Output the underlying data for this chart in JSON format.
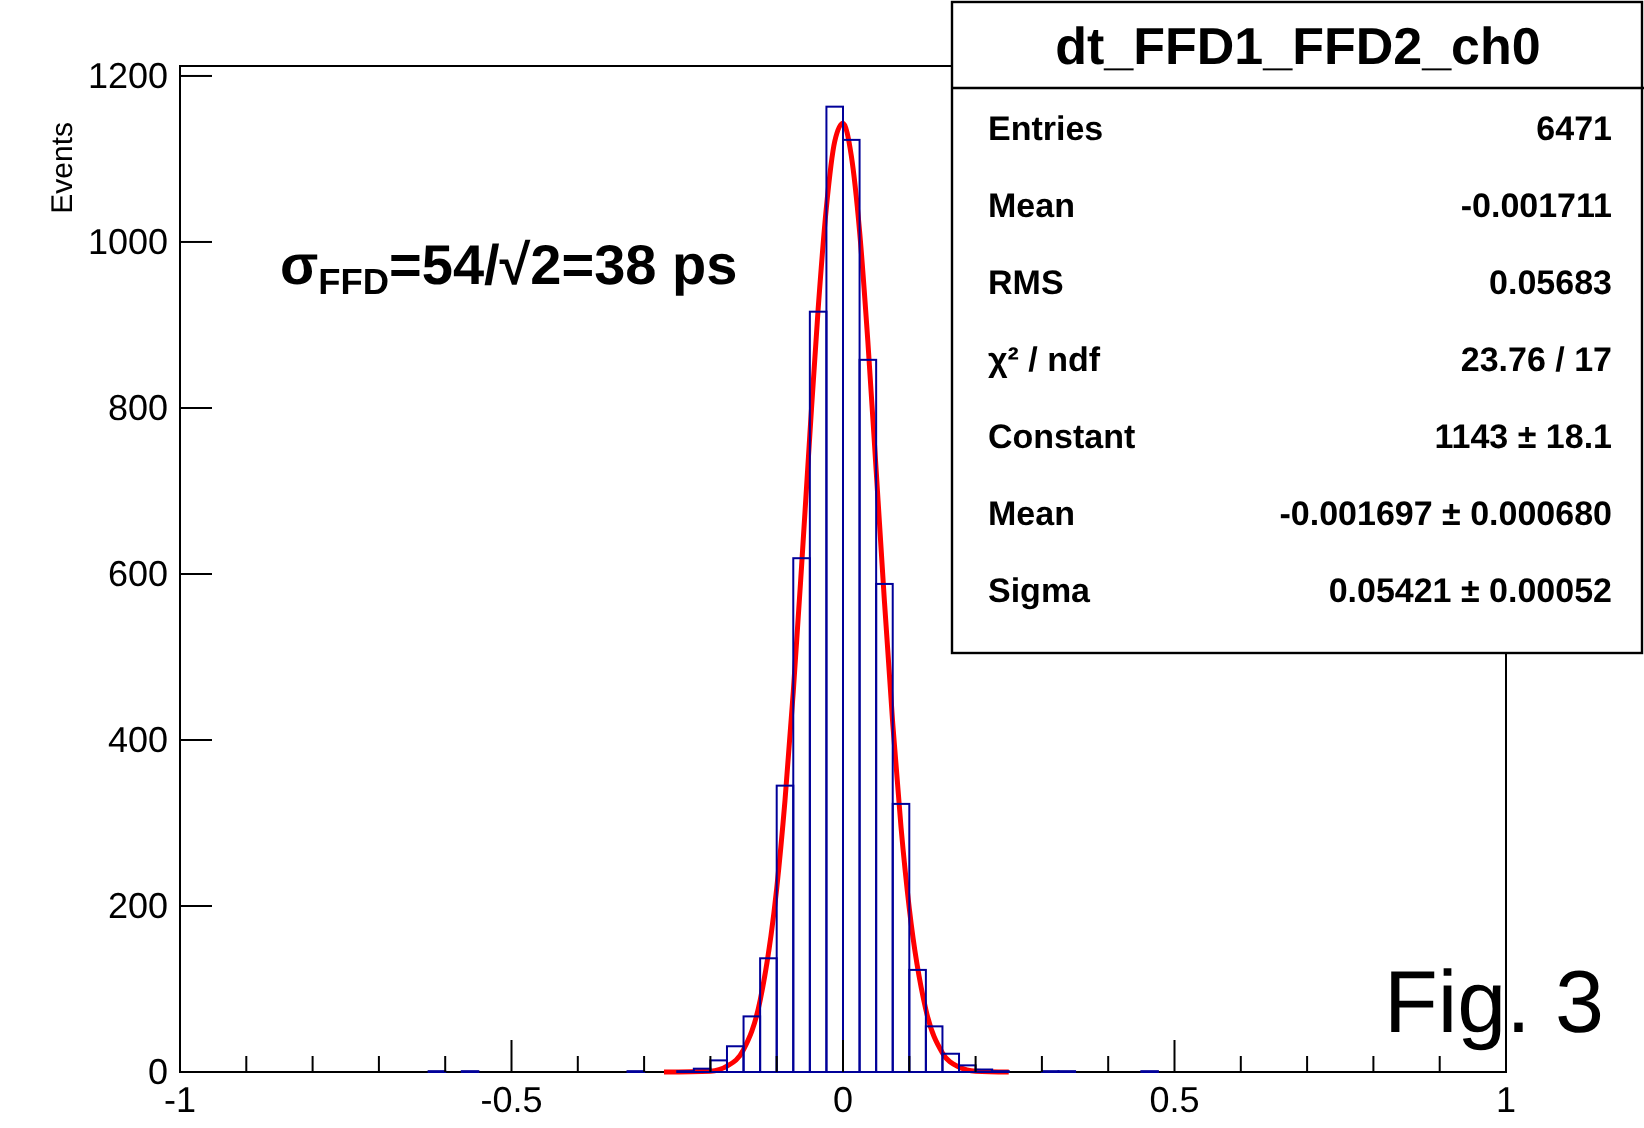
{
  "chart_data": {
    "type": "histogram",
    "title": "dt_FFD1_FFD2_ch0",
    "ylabel": "Events",
    "xlim": [
      -1,
      1
    ],
    "ylim": [
      0,
      1212
    ],
    "xticks": [
      -1,
      {
        "value": -0.9,
        "label": null
      },
      {
        "value": -0.8,
        "label": null
      },
      {
        "value": -0.7,
        "label": null
      },
      {
        "value": -0.6,
        "label": null
      },
      -0.5,
      {
        "value": -0.4,
        "label": null
      },
      {
        "value": -0.3,
        "label": null
      },
      {
        "value": -0.2,
        "label": null
      },
      {
        "value": -0.1,
        "label": null
      },
      0,
      {
        "value": 0.1,
        "label": null
      },
      {
        "value": 0.2,
        "label": null
      },
      {
        "value": 0.3,
        "label": null
      },
      {
        "value": 0.4,
        "label": null
      },
      0.5,
      {
        "value": 0.6,
        "label": null
      },
      {
        "value": 0.7,
        "label": null
      },
      {
        "value": 0.8,
        "label": null
      },
      {
        "value": 0.9,
        "label": null
      },
      1
    ],
    "yticks": [
      0,
      200,
      400,
      600,
      800,
      1000,
      1200
    ],
    "series": [
      {
        "color": "#000099",
        "bins": [
          -1,
          -0.975,
          -0.95,
          -0.925,
          -0.9,
          -0.875,
          -0.85,
          -0.825,
          -0.8,
          -0.775,
          -0.75,
          -0.725,
          -0.7,
          -0.675,
          -0.65,
          -0.625,
          -0.6,
          -0.575,
          -0.55,
          -0.525,
          -0.5,
          -0.475,
          -0.45,
          -0.425,
          -0.4,
          -0.375,
          -0.35,
          -0.325,
          -0.3,
          -0.275,
          -0.25,
          -0.225,
          -0.2,
          -0.175,
          -0.15,
          -0.125,
          -0.1,
          -0.075,
          -0.05,
          -0.025,
          0,
          0.025,
          0.05,
          0.075,
          0.1,
          0.125,
          0.15,
          0.175,
          0.2,
          0.225,
          0.25,
          0.275,
          0.3,
          0.325,
          0.35,
          0.375,
          0.4,
          0.425,
          0.45,
          0.475,
          0.5,
          0.525,
          0.55,
          0.575,
          0.6,
          0.625,
          0.65,
          0.675,
          0.7,
          0.725,
          0.75,
          0.775,
          0.8,
          0.825,
          0.85,
          0.875,
          0.9,
          0.925,
          0.95,
          0.975,
          1
        ],
        "values": [
          0,
          0,
          0,
          0,
          0,
          0,
          0,
          0,
          0,
          0,
          0,
          0,
          0,
          0,
          0,
          1,
          0,
          1,
          0,
          0,
          0,
          0,
          0,
          0,
          0,
          0,
          0,
          1,
          0,
          0,
          1,
          4,
          14,
          31,
          67,
          137,
          345,
          619,
          916,
          1163,
          1123,
          858,
          588,
          323,
          123,
          55,
          22,
          8,
          3,
          1,
          0,
          0,
          1,
          1,
          0,
          0,
          0,
          0,
          1,
          0,
          0,
          0,
          0,
          0,
          0,
          0,
          0,
          0,
          0,
          0,
          0,
          0,
          0,
          0,
          0,
          0,
          0,
          0,
          0,
          0
        ]
      },
      {
        "type": "line",
        "color": "#ff0000",
        "x": [
          -0.27,
          -0.2,
          -0.175,
          -0.15,
          -0.125,
          -0.1,
          -0.0875,
          -0.075,
          -0.0625,
          -0.05,
          -0.0375,
          -0.025,
          -0.0125,
          0,
          0.0125,
          0.025,
          0.0375,
          0.05,
          0.0625,
          0.075,
          0.0875,
          0.1,
          0.125,
          0.15,
          0.175,
          0.2,
          0.25
        ],
        "values": [
          0,
          1,
          7,
          27,
          86,
          221,
          327,
          458,
          609,
          768,
          919,
          1042,
          1121,
          1143,
          1104,
          1013,
          880,
          725,
          567,
          420,
          295,
          197,
          75,
          23,
          6,
          1,
          0
        ]
      }
    ],
    "annotations": [
      "σ$_{FFD}$=54/√2=38 ps",
      "Entries\t6471",
      "Mean\t-0.001711",
      "RMS\t0.05683",
      "χ² / ndf\t23.76 / 17",
      "Constant\t1143 ± 18.1",
      "Mean\t-0.001697 ± 0.000680",
      "Sigma\t0.05421 ± 0.00052",
      "Fig. 3"
    ]
  }
}
